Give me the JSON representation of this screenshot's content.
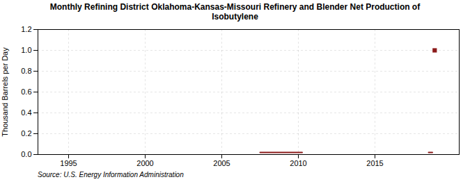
{
  "chart_data": {
    "type": "line",
    "title": "Monthly Refining District Oklahoma-Kansas-Missouri Refinery and Blender Net Production of\nIsobutylene",
    "ylabel": "Thousand Barrels per Day",
    "source": "Source: U.S. Energy Information Administration",
    "xlim": [
      1993,
      2020.5
    ],
    "xticks": [
      1995,
      2000,
      2005,
      2010,
      2015
    ],
    "ylim": [
      0,
      1.2
    ],
    "yticks": [
      {
        "value": 0,
        "label": "0.0"
      },
      0.2,
      0.4,
      0.6,
      0.8,
      {
        "value": 1,
        "label": "1.0"
      },
      1.2
    ],
    "grid": true,
    "series": [
      {
        "type": "line",
        "color": "#8b1a1a",
        "x": [
          2007.5,
          2007.583,
          2007.667,
          2007.75,
          2007.833,
          2007.917,
          2008.0,
          2008.083,
          2008.167,
          2008.25,
          2008.333,
          2008.417,
          2008.5,
          2008.583,
          2008.667,
          2008.75,
          2008.833,
          2008.917,
          2009.0,
          2009.083,
          2009.167,
          2009.25,
          2009.333,
          2009.417,
          2009.5,
          2009.583,
          2009.667,
          2009.75,
          2009.833,
          2009.917,
          2010.0,
          2010.083,
          2010.167,
          2010.25
        ],
        "values": [
          0.02,
          0.02,
          0.02,
          0.02,
          0.02,
          0.02,
          0.02,
          0.02,
          0.02,
          0.02,
          0.02,
          0.02,
          0.02,
          0.02,
          0.02,
          0.02,
          0.02,
          0.02,
          0.02,
          0.02,
          0.02,
          0.02,
          0.02,
          0.02,
          0.02,
          0.02,
          0.02,
          0.02,
          0.02,
          0.02,
          0.02,
          0.02,
          0.02,
          0.02
        ]
      },
      {
        "type": "line",
        "color": "#8b1a1a",
        "x": [
          2018.5,
          2018.583,
          2018.667,
          2018.75
        ],
        "values": [
          0.02,
          0.02,
          0.02,
          0.02
        ]
      },
      {
        "type": "scatter",
        "marker": "square",
        "color": "#8b1a1a",
        "x": [
          2018.9
        ],
        "values": [
          1.0
        ]
      }
    ]
  }
}
